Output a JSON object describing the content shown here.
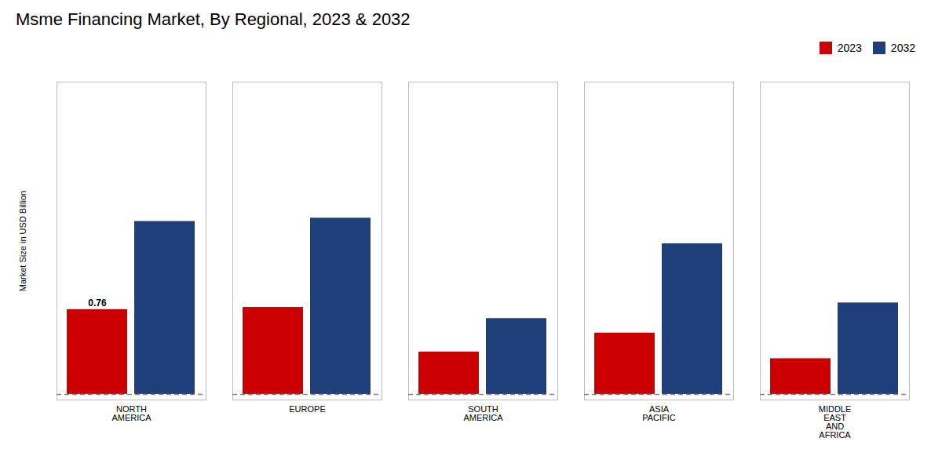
{
  "chart_data": {
    "type": "bar",
    "title": "Msme Financing Market, By Regional, 2023 & 2032",
    "ylabel": "Market Size in USD Billion",
    "categories": [
      "NORTH\nAMERICA",
      "EUROPE",
      "SOUTH\nAMERICA",
      "ASIA\nPACIFIC",
      "MIDDLE\nEAST\nAND\nAFRICA"
    ],
    "series": [
      {
        "name": "2023",
        "color": "#cc0000",
        "values": [
          0.76,
          0.78,
          0.38,
          0.55,
          0.32
        ]
      },
      {
        "name": "2032",
        "color": "#1f3f7a",
        "values": [
          1.55,
          1.58,
          0.68,
          1.35,
          0.82
        ]
      }
    ],
    "ylim": [
      -0.05,
      2.8
    ],
    "yticks": [],
    "tick_labels": "x",
    "grid": false,
    "legend": "upper right",
    "annotations": [
      {
        "text": "0.76",
        "category": "NORTH\nAMERICA",
        "series": "2023",
        "y": 0.76
      }
    ]
  }
}
